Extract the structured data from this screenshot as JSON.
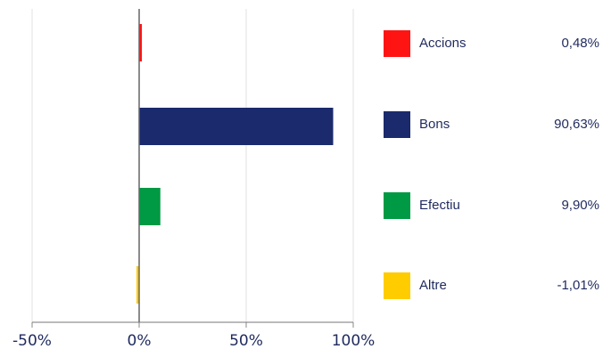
{
  "chart_data": {
    "type": "bar",
    "orientation": "horizontal",
    "categories": [
      "Accions",
      "Bons",
      "Efectiu",
      "Altre"
    ],
    "values": [
      0.48,
      90.63,
      9.9,
      -1.01
    ],
    "value_labels": [
      "0,48%",
      "90,63%",
      "9,90%",
      "-1,01%"
    ],
    "colors": [
      "#ff1414",
      "#1a2a6c",
      "#009a44",
      "#ffcc00"
    ],
    "xlim": [
      -50,
      100
    ],
    "xticks": [
      -50,
      0,
      50,
      100
    ],
    "xtick_labels": [
      "-50%",
      "0%",
      "50%",
      "100%"
    ],
    "grid": true,
    "legend_placement": "right",
    "title": "",
    "xlabel": "",
    "ylabel": ""
  }
}
